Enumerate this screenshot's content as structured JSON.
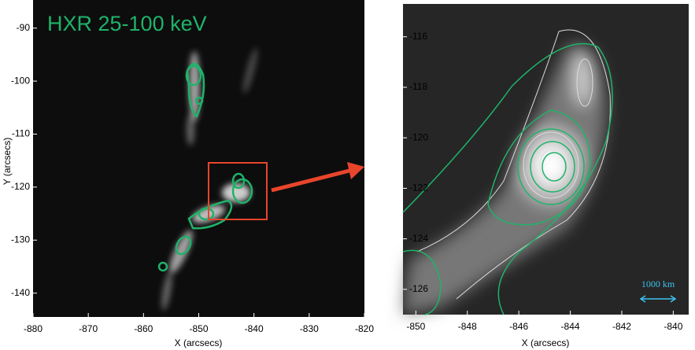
{
  "chart_data": [
    {
      "type": "image",
      "annotation": "HXR 25-100 keV",
      "xlabel": "X (arcsecs)",
      "ylabel": "Y (arcsecs)",
      "xlim": [
        -880,
        -820
      ],
      "xticks": [
        -880,
        -870,
        -860,
        -850,
        -840,
        -830,
        -820
      ],
      "ylim": [
        -144.5,
        -84.7
      ],
      "yticks": [
        -90,
        -100,
        -110,
        -120,
        -130,
        -140
      ]
    },
    {
      "type": "image",
      "annotation": "1000 km",
      "xlabel": "X (arcsecs)",
      "xlim": [
        -850.5,
        -839.4
      ],
      "xticks": [
        -850,
        -848,
        -846,
        -844,
        -842,
        -840
      ],
      "ylim": [
        -127,
        -114.7
      ],
      "yticks": [
        -116,
        -118,
        -120,
        -122,
        -124,
        -126
      ]
    }
  ]
}
